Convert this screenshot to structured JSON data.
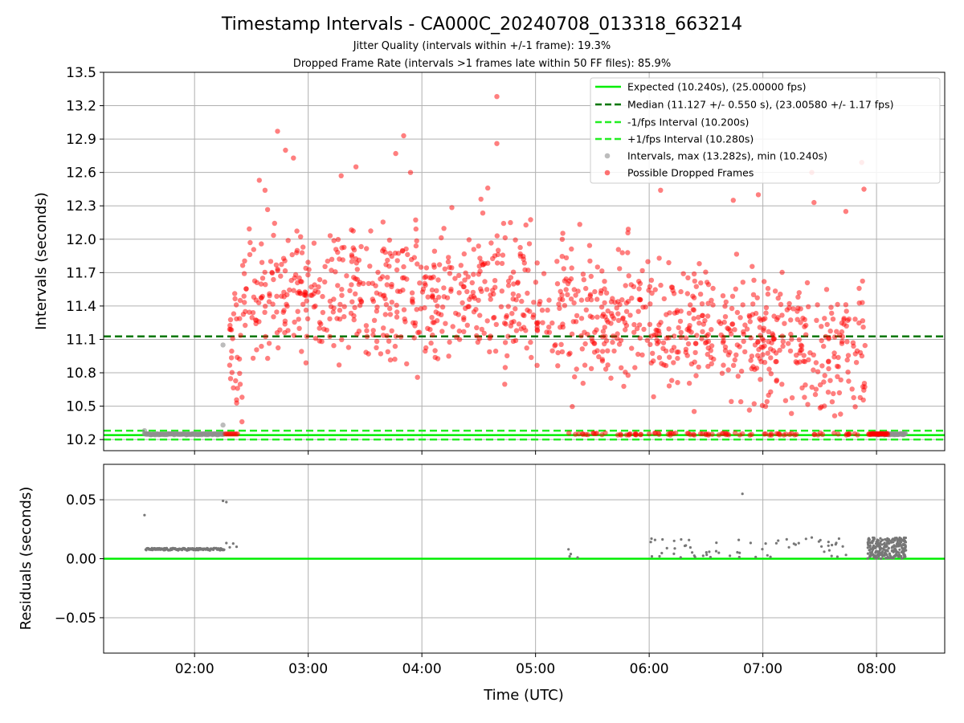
{
  "chart_data": {
    "type": "scatter",
    "title": "Timestamp Intervals - CA000C_20240708_013318_663214",
    "subtitles": [
      "Jitter Quality (intervals within +/-1 frame): 19.3%",
      "Dropped Frame Rate (intervals >1 frames late within 50 FF files): 85.9%"
    ],
    "colors": {
      "expected": "#00ee00",
      "median": "#007700",
      "interval_band": "#22ee22",
      "intervals": "#909090",
      "dropped": "#ff0000",
      "grid": "#b0b0b0"
    },
    "top_panel": {
      "ylabel": "Intervals (seconds)",
      "ylim": [
        10.1,
        13.5
      ],
      "yticks": [
        10.2,
        10.5,
        10.8,
        11.1,
        11.4,
        11.7,
        12.0,
        12.3,
        12.6,
        12.9,
        13.2,
        13.5
      ],
      "ytick_labels": [
        "10.2",
        "10.5",
        "10.8",
        "11.1",
        "11.4",
        "11.7",
        "12.0",
        "12.3",
        "12.6",
        "12.9",
        "13.2",
        "13.5"
      ],
      "hlines": [
        {
          "name": "Expected (10.240s), (25.00000 fps)",
          "y": 10.24,
          "style": "solid",
          "color_key": "expected"
        },
        {
          "name": "Median (11.127 +/- 0.550 s), (23.00580 +/- 1.17 fps)",
          "y": 11.127,
          "style": "dashed",
          "color_key": "median"
        },
        {
          "name": "-1/fps Interval (10.200s)",
          "y": 10.2,
          "style": "dashed",
          "color_key": "interval_band"
        },
        {
          "name": "+1/fps Interval (10.280s)",
          "y": 10.28,
          "style": "dashed",
          "color_key": "interval_band"
        }
      ],
      "series": [
        {
          "name": "Intervals, max (13.282s), min (10.240s)",
          "color_key": "intervals"
        },
        {
          "name": "Possible Dropped Frames",
          "color_key": "dropped"
        }
      ],
      "legend_placement": "top-right"
    },
    "bottom_panel": {
      "ylabel": "Residuals (seconds)",
      "ylim": [
        -0.08,
        0.08
      ],
      "yticks": [
        0.05,
        0.0,
        -0.05
      ],
      "ytick_labels": [
        "0.05",
        "0.00",
        "−0.05"
      ],
      "hline": {
        "y": 0.0,
        "color_key": "expected"
      }
    },
    "x": {
      "label": "Time (UTC)",
      "range_hours": [
        1.2,
        8.6
      ],
      "ticks_hours": [
        2,
        3,
        4,
        5,
        6,
        7,
        8
      ],
      "tick_labels": [
        "02:00",
        "03:00",
        "04:00",
        "05:00",
        "06:00",
        "07:00",
        "08:00"
      ]
    },
    "grid": true,
    "notable_points": [
      {
        "t": 4.66,
        "y": 13.282,
        "series": "Possible Dropped Frames"
      },
      {
        "t": 4.66,
        "y": 12.86,
        "series": "Possible Dropped Frames"
      },
      {
        "t": 2.73,
        "y": 12.97,
        "series": "Possible Dropped Frames"
      },
      {
        "t": 2.8,
        "y": 12.8,
        "series": "Possible Dropped Frames"
      },
      {
        "t": 2.87,
        "y": 12.73,
        "series": "Possible Dropped Frames"
      },
      {
        "t": 3.84,
        "y": 12.93,
        "series": "Possible Dropped Frames"
      },
      {
        "t": 3.77,
        "y": 12.77,
        "series": "Possible Dropped Frames"
      },
      {
        "t": 3.9,
        "y": 12.6,
        "series": "Possible Dropped Frames"
      },
      {
        "t": 3.42,
        "y": 12.65,
        "series": "Possible Dropped Frames"
      },
      {
        "t": 3.29,
        "y": 12.57,
        "series": "Possible Dropped Frames"
      },
      {
        "t": 2.57,
        "y": 12.53,
        "series": "Possible Dropped Frames"
      },
      {
        "t": 2.62,
        "y": 12.44,
        "series": "Possible Dropped Frames"
      },
      {
        "t": 4.58,
        "y": 12.46,
        "series": "Possible Dropped Frames"
      },
      {
        "t": 4.52,
        "y": 12.36,
        "series": "Possible Dropped Frames"
      },
      {
        "t": 6.1,
        "y": 12.44,
        "series": "Possible Dropped Frames"
      },
      {
        "t": 6.74,
        "y": 12.35,
        "series": "Possible Dropped Frames"
      },
      {
        "t": 6.96,
        "y": 12.4,
        "series": "Possible Dropped Frames"
      },
      {
        "t": 7.43,
        "y": 12.6,
        "series": "Possible Dropped Frames"
      },
      {
        "t": 7.87,
        "y": 12.69,
        "series": "Possible Dropped Frames"
      },
      {
        "t": 7.89,
        "y": 12.45,
        "series": "Possible Dropped Frames"
      },
      {
        "t": 7.45,
        "y": 12.33,
        "series": "Possible Dropped Frames"
      },
      {
        "t": 7.73,
        "y": 12.25,
        "series": "Possible Dropped Frames"
      },
      {
        "t": 2.25,
        "y": 11.05,
        "series": "Intervals, max (13.282s), min (10.240s)"
      },
      {
        "t": 2.25,
        "y": 10.33,
        "series": "Intervals, max (13.282s), min (10.240s)"
      },
      {
        "t": 1.56,
        "y": 10.28,
        "series": "Intervals, max (13.282s), min (10.240s)"
      }
    ],
    "residual_notable_points": [
      {
        "t": 1.56,
        "y": 0.037
      },
      {
        "t": 2.25,
        "y": 0.049
      },
      {
        "t": 2.28,
        "y": 0.048
      },
      {
        "t": 6.82,
        "y": 0.055
      },
      {
        "t": 6.02,
        "y": 0.017
      },
      {
        "t": 7.43,
        "y": 0.018
      },
      {
        "t": 7.67,
        "y": 0.017
      }
    ]
  }
}
